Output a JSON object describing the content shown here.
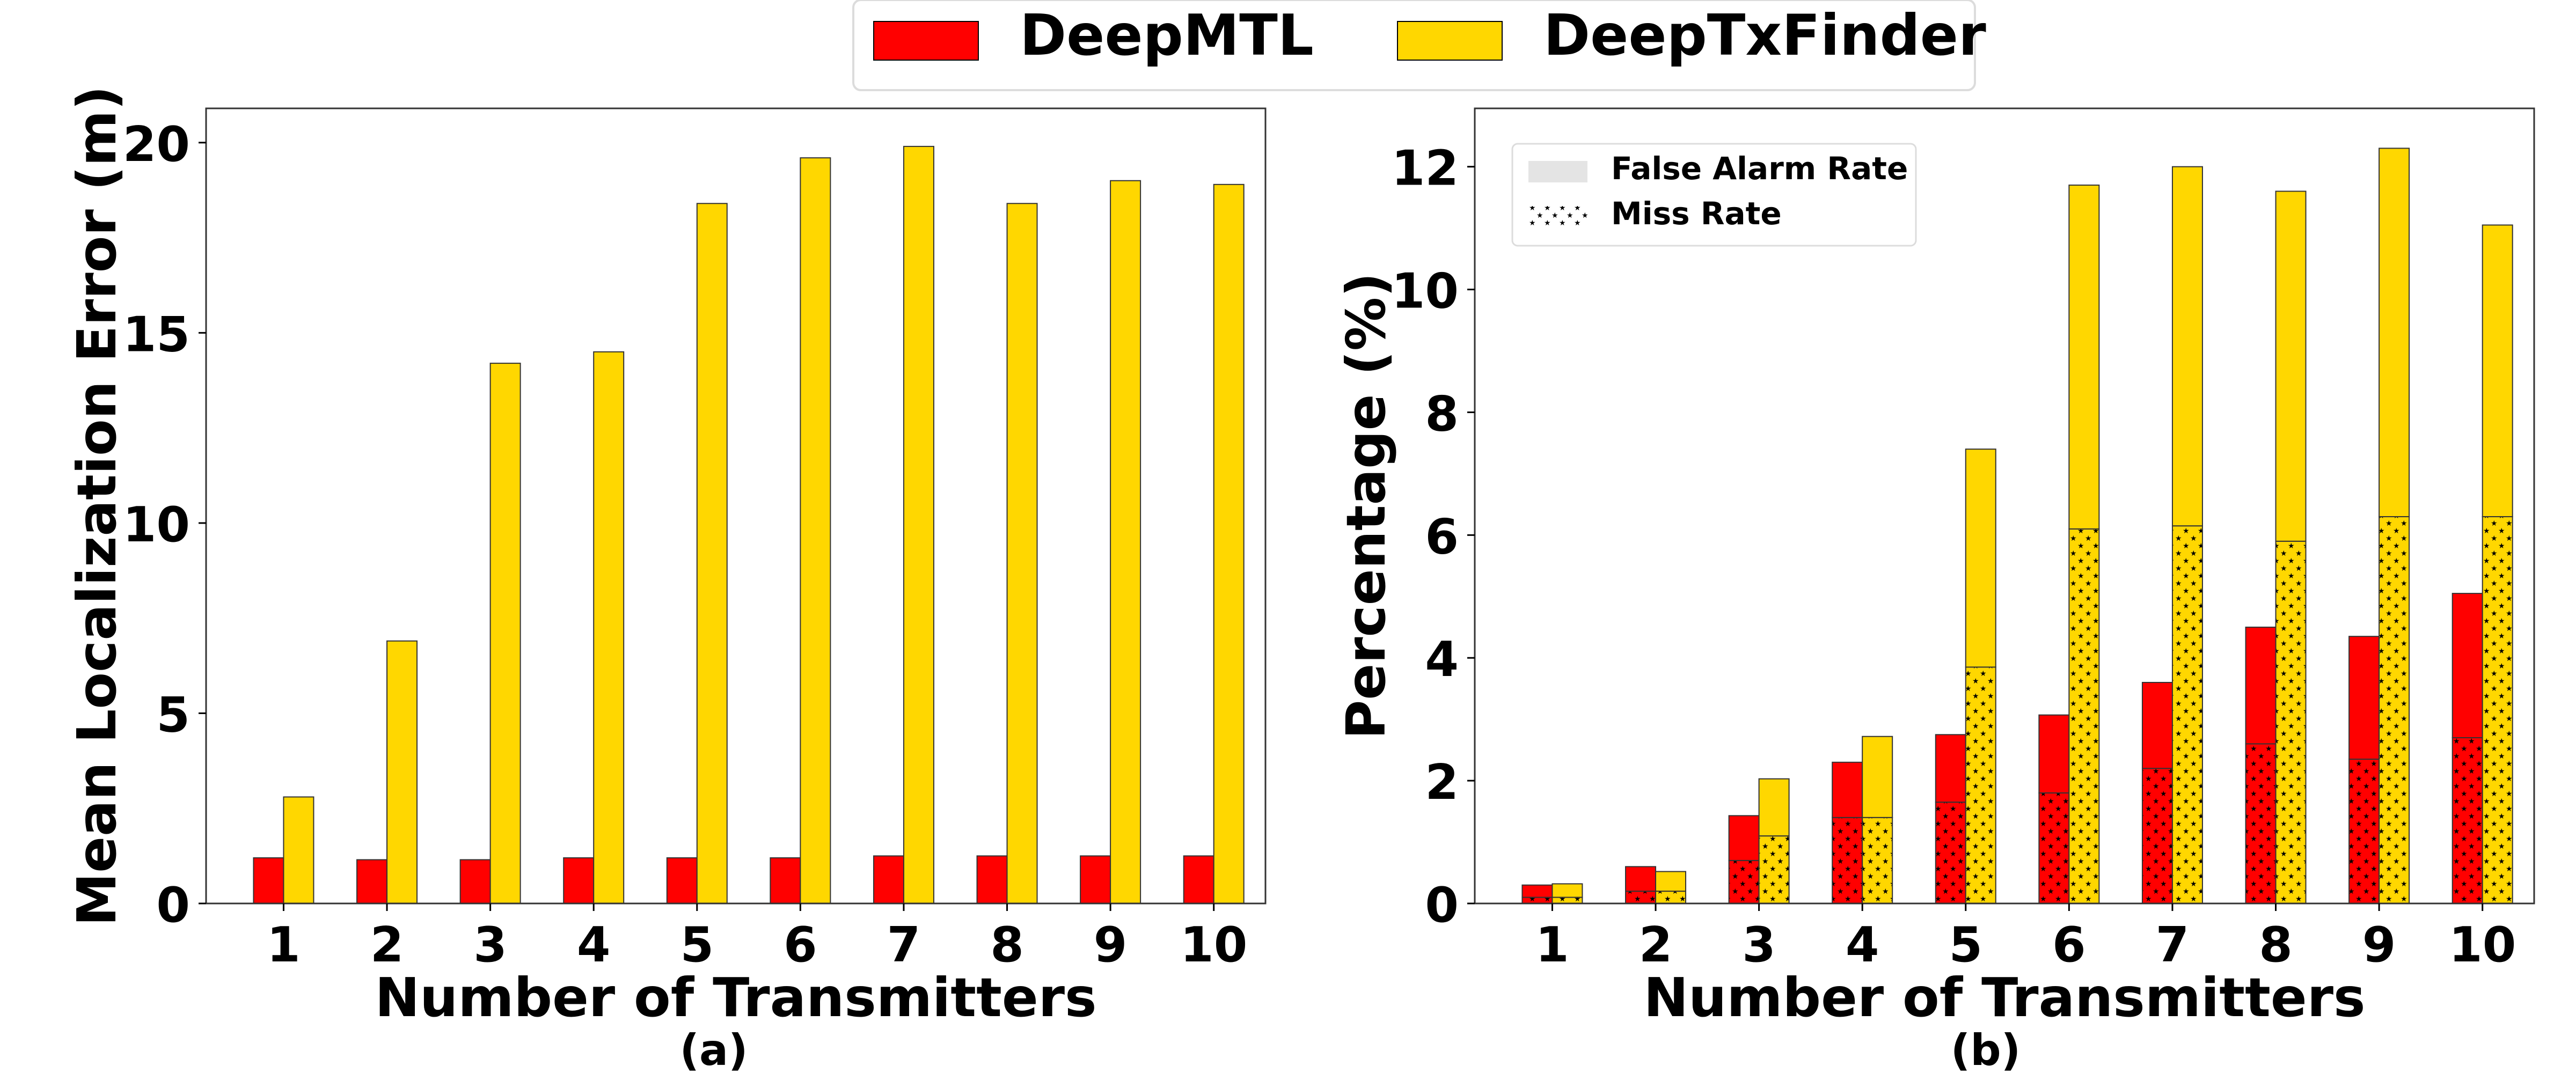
{
  "legend": {
    "items": [
      {
        "label": "DeepMTL",
        "color": "#ff0000"
      },
      {
        "label": "DeepTxFinder",
        "color": "#ffd700"
      }
    ]
  },
  "chart_data": [
    {
      "type": "bar",
      "panel_label": "(a)",
      "categories": [
        "1",
        "2",
        "3",
        "4",
        "5",
        "6",
        "7",
        "8",
        "9",
        "10"
      ],
      "series": [
        {
          "name": "DeepMTL",
          "color": "#ff0000",
          "values": [
            1.2,
            1.15,
            1.15,
            1.2,
            1.2,
            1.2,
            1.25,
            1.25,
            1.25,
            1.25
          ]
        },
        {
          "name": "DeepTxFinder",
          "color": "#ffd700",
          "values": [
            2.8,
            6.9,
            14.2,
            14.5,
            18.4,
            19.6,
            19.9,
            18.4,
            19.0,
            18.9
          ]
        }
      ],
      "xlabel": "Number of Transmitters",
      "ylabel": "Mean Localization Error (m)",
      "ylim": [
        0,
        20.9
      ],
      "yticks": [
        0,
        5,
        10,
        15,
        20
      ],
      "grid": false
    },
    {
      "type": "bar",
      "stacked": true,
      "panel_label": "(b)",
      "categories": [
        "1",
        "2",
        "3",
        "4",
        "5",
        "6",
        "7",
        "8",
        "9",
        "10"
      ],
      "series": [
        {
          "name": "DeepMTL",
          "color": "#ff0000",
          "miss_rate": [
            0.1,
            0.2,
            0.7,
            1.4,
            1.65,
            1.8,
            2.2,
            2.6,
            2.35,
            2.7
          ],
          "false_alarm_rate": [
            0.2,
            0.4,
            0.73,
            0.9,
            1.1,
            1.27,
            1.4,
            1.9,
            2.0,
            2.35
          ]
        },
        {
          "name": "DeepTxFinder",
          "color": "#ffd700",
          "miss_rate": [
            0.1,
            0.2,
            1.1,
            1.4,
            3.85,
            6.1,
            6.15,
            5.9,
            6.3,
            6.3
          ],
          "false_alarm_rate": [
            0.22,
            0.32,
            0.93,
            1.32,
            3.55,
            5.6,
            5.85,
            5.7,
            6.0,
            4.75
          ]
        }
      ],
      "stack_legend": [
        {
          "label": "False Alarm Rate",
          "pattern": "solid"
        },
        {
          "label": "Miss Rate",
          "pattern": "stars"
        }
      ],
      "stack_legend_placement": "upper-left",
      "xlabel": "Number of Transmitters",
      "ylabel": "Percentage (%)",
      "ylim": [
        0,
        12.95
      ],
      "yticks": [
        0,
        2,
        4,
        6,
        8,
        10,
        12
      ],
      "grid": false
    }
  ]
}
